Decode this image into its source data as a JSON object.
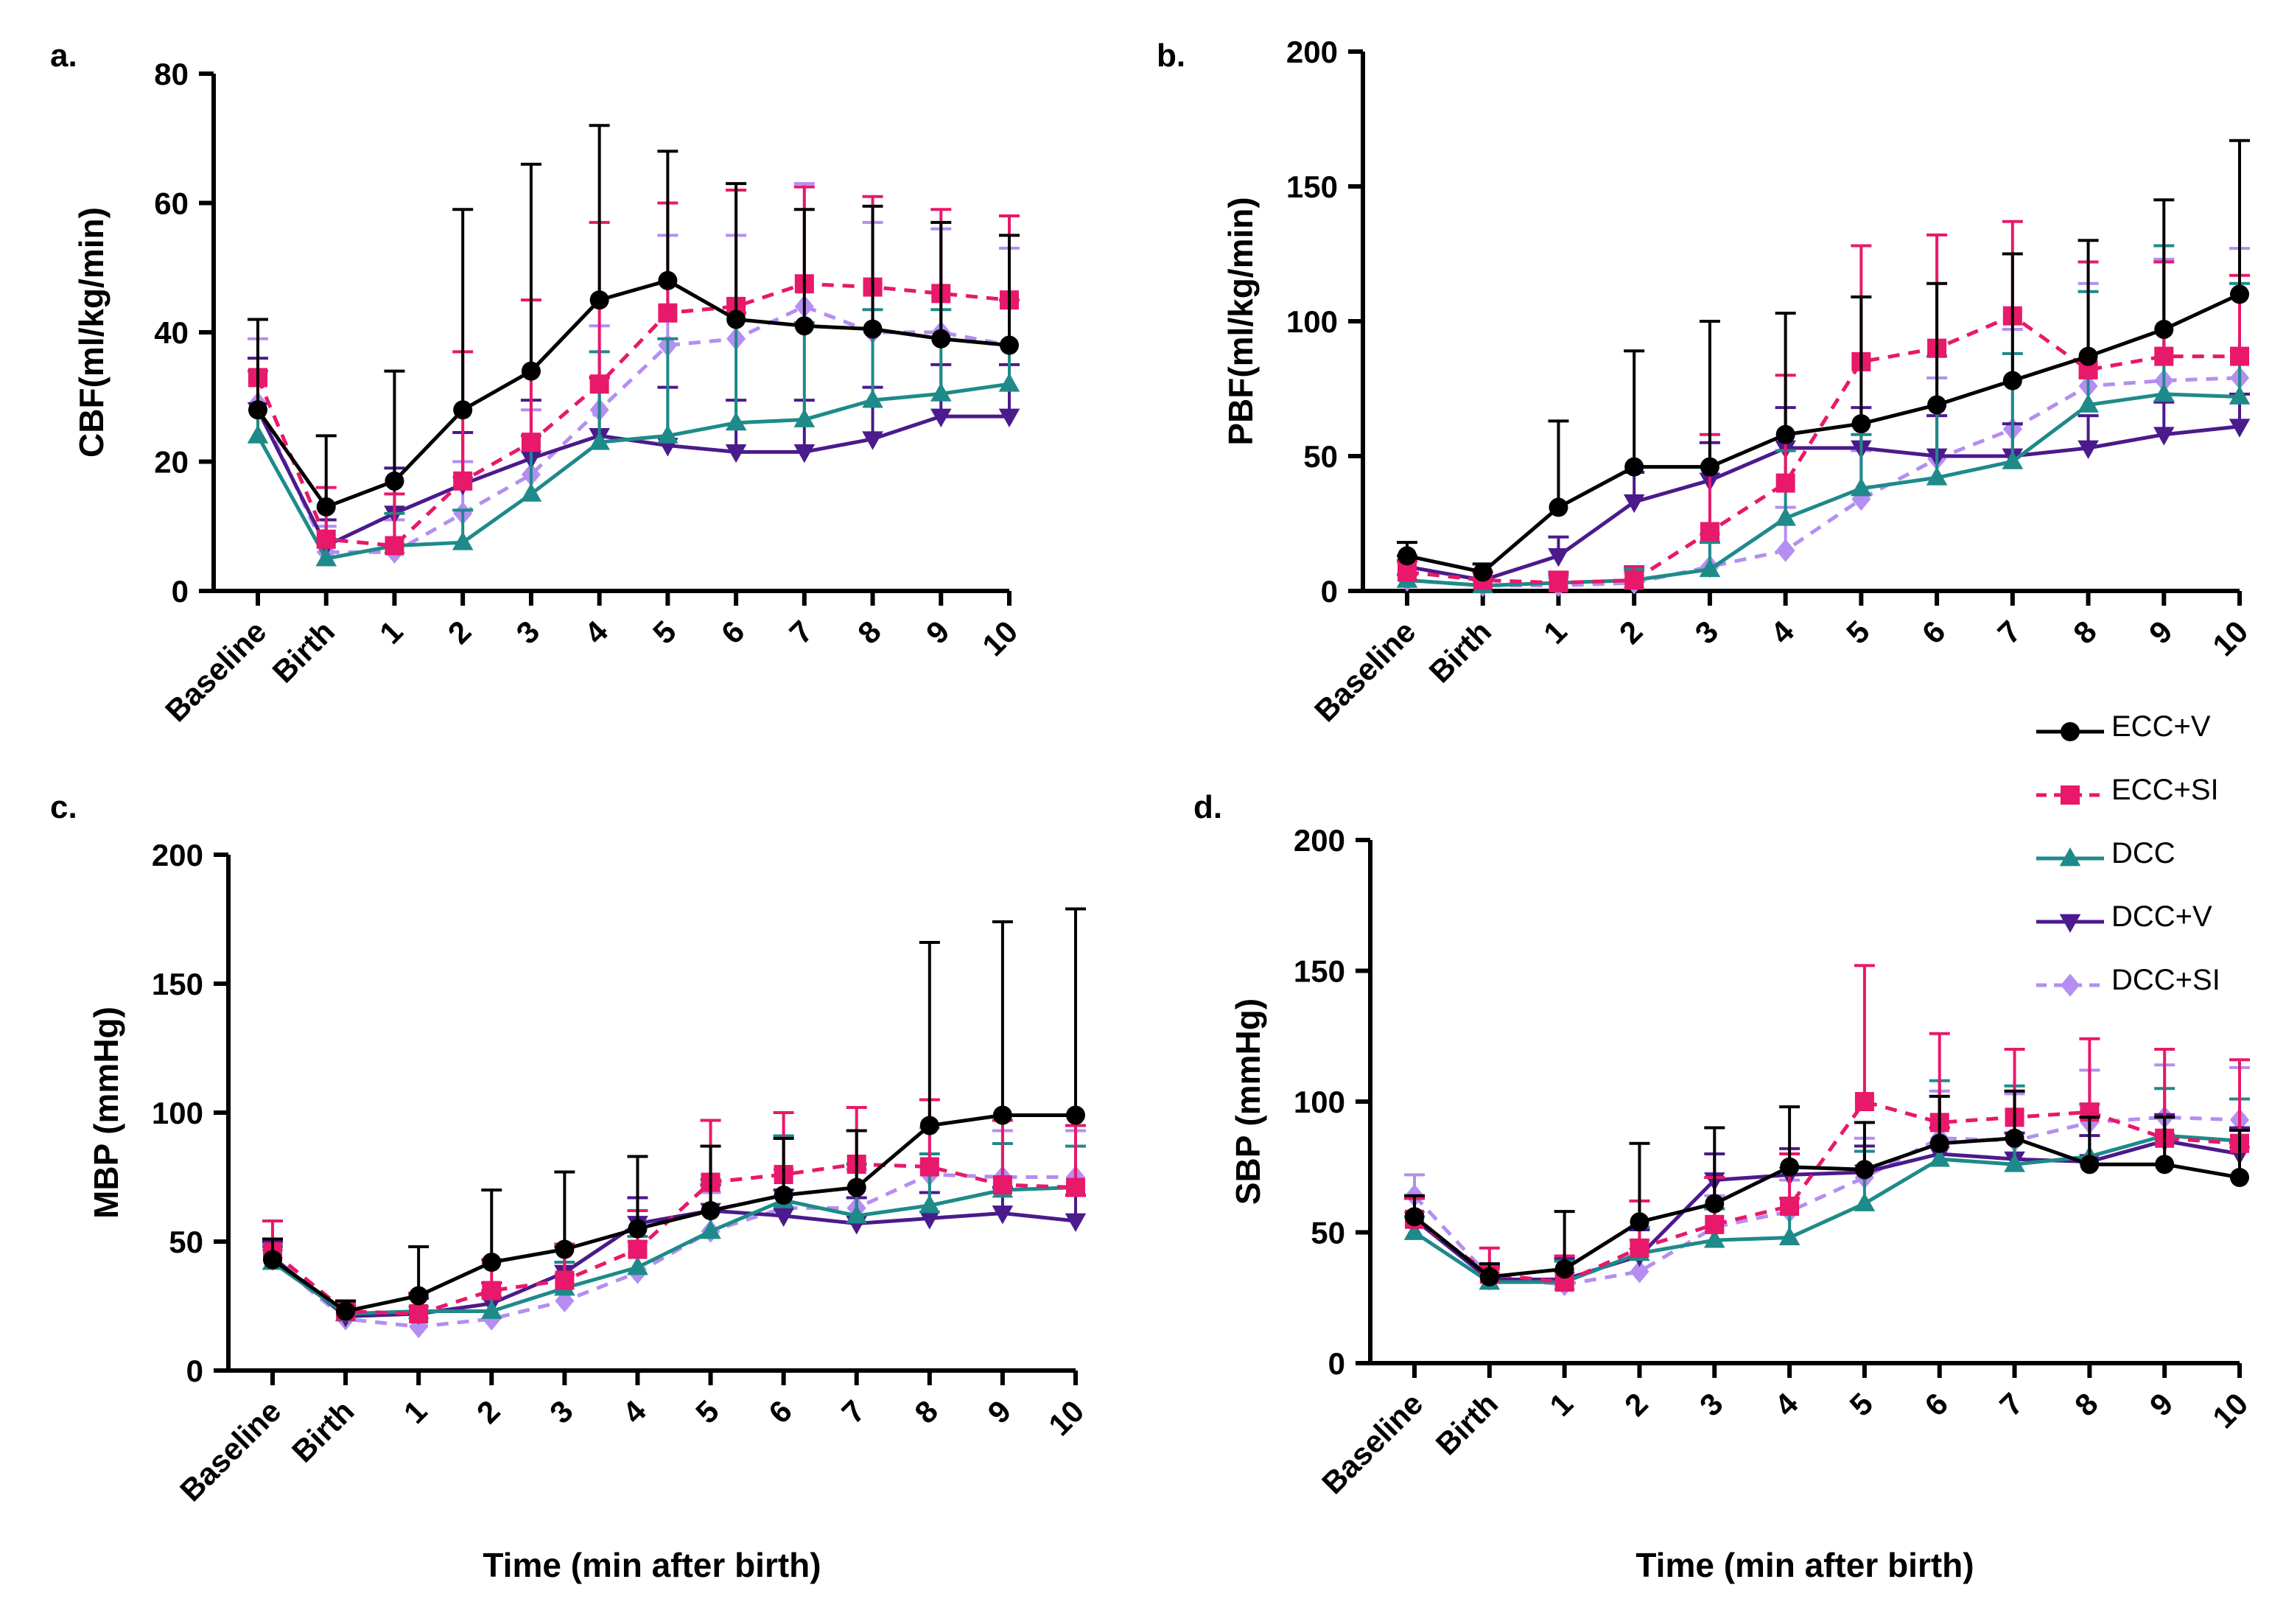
{
  "legend": {
    "items": [
      {
        "key": "eccv",
        "label": "ECC+V"
      },
      {
        "key": "eccsi",
        "label": "ECC+SI"
      },
      {
        "key": "dcc",
        "label": "DCC"
      },
      {
        "key": "dccv",
        "label": "DCC+V"
      },
      {
        "key": "dccsi",
        "label": "DCC+SI"
      }
    ]
  },
  "series_styles": {
    "eccv": {
      "color": "#000000",
      "marker": "circle",
      "dash": "solid"
    },
    "eccsi": {
      "color": "#e8186a",
      "marker": "square",
      "dash": "dashed"
    },
    "dcc": {
      "color": "#1e8a8a",
      "marker": "triangle-up",
      "dash": "solid"
    },
    "dccv": {
      "color": "#4b1a8c",
      "marker": "triangle-down",
      "dash": "solid"
    },
    "dccsi": {
      "color": "#b48ef0",
      "marker": "diamond",
      "dash": "dashed"
    }
  },
  "chart_data": [
    {
      "id": "a",
      "panel_label": "a.",
      "type": "line",
      "title": "",
      "xlabel": "",
      "ylabel": "CBF(ml/kg/min)",
      "ylim": [
        0,
        80
      ],
      "yticks": [
        0,
        20,
        40,
        60,
        80
      ],
      "categories": [
        "Baseline",
        "Birth",
        "1",
        "2",
        "3",
        "4",
        "5",
        "6",
        "7",
        "8",
        "9",
        "10"
      ],
      "series": [
        {
          "key": "eccv",
          "name": "ECC+V",
          "values": [
            28,
            13,
            17,
            28,
            34,
            45,
            48,
            42,
            41,
            40.5,
            39,
            38
          ],
          "err_up": [
            14,
            11,
            17,
            31,
            32,
            27,
            20,
            21,
            18,
            19,
            18,
            17
          ]
        },
        {
          "key": "eccsi",
          "name": "ECC+SI",
          "values": [
            33,
            8,
            7,
            17,
            23,
            32,
            43,
            44,
            47.5,
            47,
            46,
            45
          ],
          "err_up": [
            9,
            8,
            8,
            20,
            22,
            25,
            17,
            18,
            15,
            14,
            13,
            13
          ]
        },
        {
          "key": "dcc",
          "name": "DCC",
          "values": [
            24,
            5,
            7,
            7.5,
            15,
            23,
            24,
            26,
            26.5,
            29.5,
            30.5,
            32
          ],
          "err_up": [
            10,
            3,
            5,
            5,
            9,
            14,
            15,
            17,
            15,
            14,
            13,
            13
          ]
        },
        {
          "key": "dccv",
          "name": "DCC+V",
          "values": [
            28,
            7,
            12,
            16.5,
            20.5,
            24,
            22.5,
            21.5,
            21.5,
            23.5,
            27,
            27
          ],
          "err_up": [
            8,
            4,
            7,
            8,
            9,
            9,
            9,
            8,
            8,
            8,
            8,
            8
          ]
        },
        {
          "key": "dccsi",
          "name": "DCC+SI",
          "values": [
            29,
            6,
            6,
            12,
            18,
            28,
            38,
            39,
            44,
            40,
            40,
            38
          ],
          "err_up": [
            10,
            4,
            5,
            8,
            10,
            13,
            17,
            16,
            19,
            17,
            16,
            15
          ]
        }
      ]
    },
    {
      "id": "b",
      "panel_label": "b.",
      "type": "line",
      "title": "",
      "xlabel": "",
      "ylabel": "PBF(ml/kg/min)",
      "ylim": [
        0,
        200
      ],
      "yticks": [
        0,
        50,
        100,
        150,
        200
      ],
      "categories": [
        "Baseline",
        "Birth",
        "1",
        "2",
        "3",
        "4",
        "5",
        "6",
        "7",
        "8",
        "9",
        "10"
      ],
      "series": [
        {
          "key": "eccv",
          "name": "ECC+V",
          "values": [
            13,
            7,
            31,
            46,
            46,
            58,
            62,
            69,
            78,
            87,
            97,
            110
          ],
          "err_up": [
            5,
            3,
            32,
            43,
            54,
            45,
            47,
            45,
            47,
            43,
            48,
            57
          ]
        },
        {
          "key": "eccsi",
          "name": "ECC+SI",
          "values": [
            7,
            4,
            3,
            4,
            22,
            40,
            85,
            90,
            102,
            82,
            87,
            87
          ],
          "err_up": [
            4,
            3,
            4,
            5,
            36,
            40,
            43,
            42,
            35,
            40,
            35,
            30
          ]
        },
        {
          "key": "dcc",
          "name": "DCC",
          "values": [
            4,
            2,
            3,
            4,
            8,
            27,
            38,
            42,
            48,
            69,
            73,
            72
          ],
          "err_up": [
            2,
            2,
            3,
            4,
            10,
            25,
            20,
            45,
            40,
            42,
            55,
            42
          ]
        },
        {
          "key": "dccv",
          "name": "DCC+V",
          "values": [
            9,
            4,
            13,
            33,
            41,
            53,
            53,
            50,
            50,
            53,
            58,
            61
          ],
          "err_up": [
            4,
            3,
            7,
            11,
            14,
            15,
            15,
            15,
            12,
            12,
            12,
            12
          ]
        },
        {
          "key": "dccsi",
          "name": "DCC+SI",
          "values": [
            4,
            2,
            2,
            3,
            9,
            15,
            34,
            49,
            60,
            76,
            78,
            79
          ],
          "err_up": [
            2,
            2,
            3,
            4,
            12,
            16,
            18,
            30,
            37,
            38,
            45,
            48
          ]
        }
      ]
    },
    {
      "id": "c",
      "panel_label": "c.",
      "type": "line",
      "title": "",
      "xlabel": "Time (min after birth)",
      "ylabel": "MBP (mmHg)",
      "ylim": [
        0,
        200
      ],
      "yticks": [
        0,
        50,
        100,
        150,
        200
      ],
      "categories": [
        "Baseline",
        "Birth",
        "1",
        "2",
        "3",
        "4",
        "5",
        "6",
        "7",
        "8",
        "9",
        "10"
      ],
      "series": [
        {
          "key": "eccv",
          "name": "ECC+V",
          "values": [
            43,
            23,
            29,
            42,
            47,
            55,
            62,
            68,
            71,
            95,
            99,
            99
          ],
          "err_up": [
            8,
            4,
            19,
            28,
            30,
            28,
            25,
            22,
            22,
            71,
            75,
            80
          ]
        },
        {
          "key": "eccsi",
          "name": "ECC+SI",
          "values": [
            46,
            23,
            22,
            31,
            35,
            47,
            73,
            76,
            80,
            79,
            72,
            71
          ],
          "err_up": [
            12,
            4,
            8,
            12,
            14,
            15,
            24,
            24,
            22,
            26,
            25,
            24
          ]
        },
        {
          "key": "dcc",
          "name": "DCC",
          "values": [
            42,
            22,
            23,
            23,
            32,
            40,
            54,
            66,
            60,
            64,
            70,
            71
          ],
          "err_up": [
            6,
            4,
            6,
            8,
            10,
            12,
            20,
            25,
            20,
            20,
            18,
            16
          ]
        },
        {
          "key": "dccv",
          "name": "DCC+V",
          "values": [
            44,
            21,
            22,
            26,
            38,
            57,
            62,
            60,
            57,
            59,
            61,
            58
          ],
          "err_up": [
            6,
            4,
            6,
            8,
            10,
            10,
            10,
            10,
            10,
            10,
            10,
            10
          ]
        },
        {
          "key": "dccsi",
          "name": "DCC+SI",
          "values": [
            43,
            20,
            17,
            20,
            27,
            38,
            54,
            63,
            63,
            76,
            75,
            75
          ],
          "err_up": [
            6,
            4,
            6,
            8,
            10,
            12,
            15,
            15,
            15,
            18,
            18,
            18
          ]
        }
      ]
    },
    {
      "id": "d",
      "panel_label": "d.",
      "type": "line",
      "title": "",
      "xlabel": "Time (min after birth)",
      "ylabel": "SBP (mmHg)",
      "ylim": [
        0,
        200
      ],
      "yticks": [
        0,
        50,
        100,
        150,
        200
      ],
      "categories": [
        "Baseline",
        "Birth",
        "1",
        "2",
        "3",
        "4",
        "5",
        "6",
        "7",
        "8",
        "9",
        "10"
      ],
      "series": [
        {
          "key": "eccv",
          "name": "ECC+V",
          "values": [
            56,
            33,
            36,
            54,
            61,
            75,
            74,
            84,
            86,
            76,
            76,
            71
          ],
          "err_up": [
            8,
            5,
            22,
            30,
            29,
            23,
            18,
            18,
            18,
            18,
            18,
            18
          ]
        },
        {
          "key": "eccsi",
          "name": "ECC+SI",
          "values": [
            55,
            34,
            31,
            44,
            53,
            60,
            100,
            92,
            94,
            96,
            86,
            84
          ],
          "err_up": [
            8,
            10,
            10,
            18,
            18,
            20,
            52,
            34,
            26,
            28,
            34,
            32
          ]
        },
        {
          "key": "dcc",
          "name": "DCC",
          "values": [
            50,
            31,
            31,
            42,
            47,
            48,
            61,
            78,
            76,
            79,
            87,
            85
          ],
          "err_up": [
            6,
            5,
            8,
            10,
            12,
            15,
            20,
            30,
            30,
            20,
            18,
            16
          ]
        },
        {
          "key": "dccv",
          "name": "DCC+V",
          "values": [
            55,
            32,
            32,
            41,
            70,
            72,
            73,
            80,
            78,
            77,
            85,
            80
          ],
          "err_up": [
            8,
            5,
            8,
            10,
            10,
            10,
            10,
            10,
            10,
            10,
            10,
            10
          ]
        },
        {
          "key": "dccsi",
          "name": "DCC+SI",
          "values": [
            64,
            33,
            30,
            35,
            52,
            58,
            71,
            86,
            85,
            92,
            94,
            93
          ],
          "err_up": [
            8,
            5,
            10,
            12,
            12,
            12,
            15,
            18,
            18,
            20,
            20,
            20
          ]
        }
      ]
    }
  ]
}
